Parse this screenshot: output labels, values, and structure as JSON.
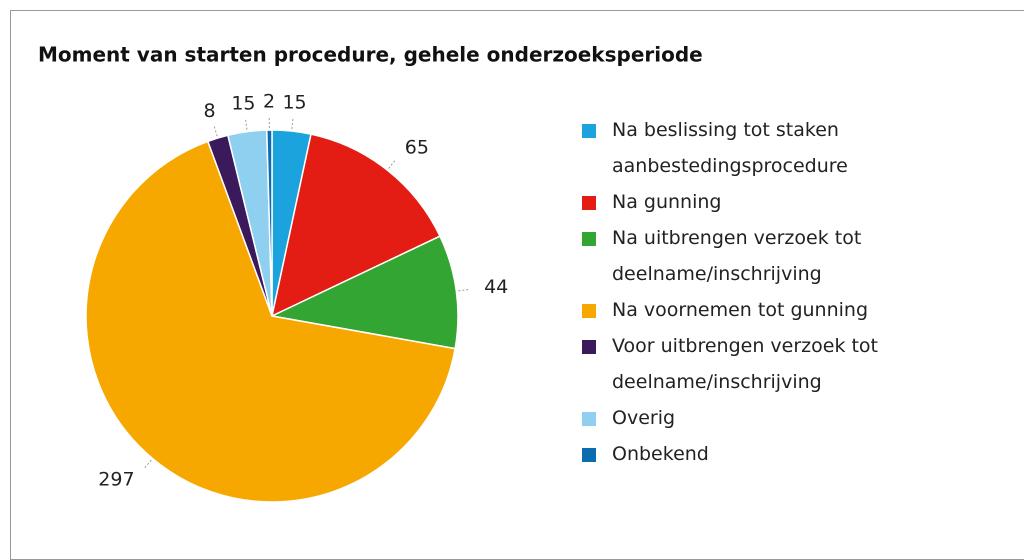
{
  "chart_data": {
    "type": "pie",
    "title": "Moment van starten procedure, gehele onderzoeksperiode",
    "categories": [
      "Na beslissing tot staken aanbestedingsprocedure",
      "Na gunning",
      "Na uitbrengen verzoek tot deelname/inschrijving",
      "Na voornemen tot gunning",
      "Voor uitbrengen verzoek tot deelname/inschrijving",
      "Overig",
      "Onbekend"
    ],
    "values": [
      15,
      65,
      44,
      297,
      8,
      15,
      2
    ],
    "colors": [
      "#1aa3dd",
      "#e41d14",
      "#33a532",
      "#f7a800",
      "#3a1a5a",
      "#8fd0f0",
      "#0b6cb0"
    ],
    "legend": "right"
  }
}
